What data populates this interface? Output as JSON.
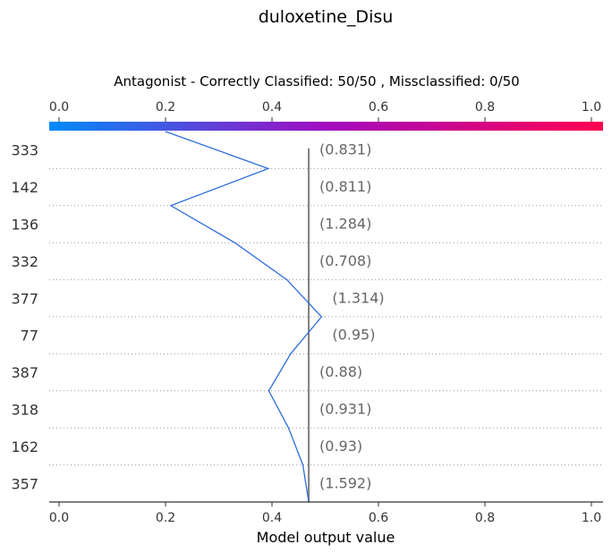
{
  "chart_data": {
    "type": "line",
    "title": "duloxetine_Disu",
    "subtitle": "Antagonist - Correctly Classified: 50/50 , Missclassified: 0/50",
    "xlabel": "Model output value",
    "xlim": [
      0.0,
      1.0
    ],
    "xticks": [
      "0.0",
      "0.2",
      "0.4",
      "0.6",
      "0.8",
      "1.0"
    ],
    "xtick_values": [
      0.0,
      0.2,
      0.4,
      0.6,
      0.8,
      1.0
    ],
    "base_value": 0.469,
    "colorbar": {
      "from": "#008bfb",
      "mid": "#a20cc0",
      "to": "#ff0052"
    },
    "line_color": "#2f6edb",
    "rows": [
      {
        "feature": "333",
        "value_label": "(0.831)"
      },
      {
        "feature": "142",
        "value_label": "(0.811)"
      },
      {
        "feature": "136",
        "value_label": "(1.284)"
      },
      {
        "feature": "332",
        "value_label": "(0.708)"
      },
      {
        "feature": "377",
        "value_label": "(1.314)"
      },
      {
        "feature": "77",
        "value_label": "(0.95)"
      },
      {
        "feature": "387",
        "value_label": "(0.88)"
      },
      {
        "feature": "318",
        "value_label": "(0.931)"
      },
      {
        "feature": "162",
        "value_label": "(0.93)"
      },
      {
        "feature": "357",
        "value_label": "(1.592)"
      }
    ],
    "path_x": [
      0.2,
      0.393,
      0.21,
      0.33,
      0.428,
      0.493,
      0.435,
      0.394,
      0.431,
      0.458,
      0.469
    ]
  }
}
